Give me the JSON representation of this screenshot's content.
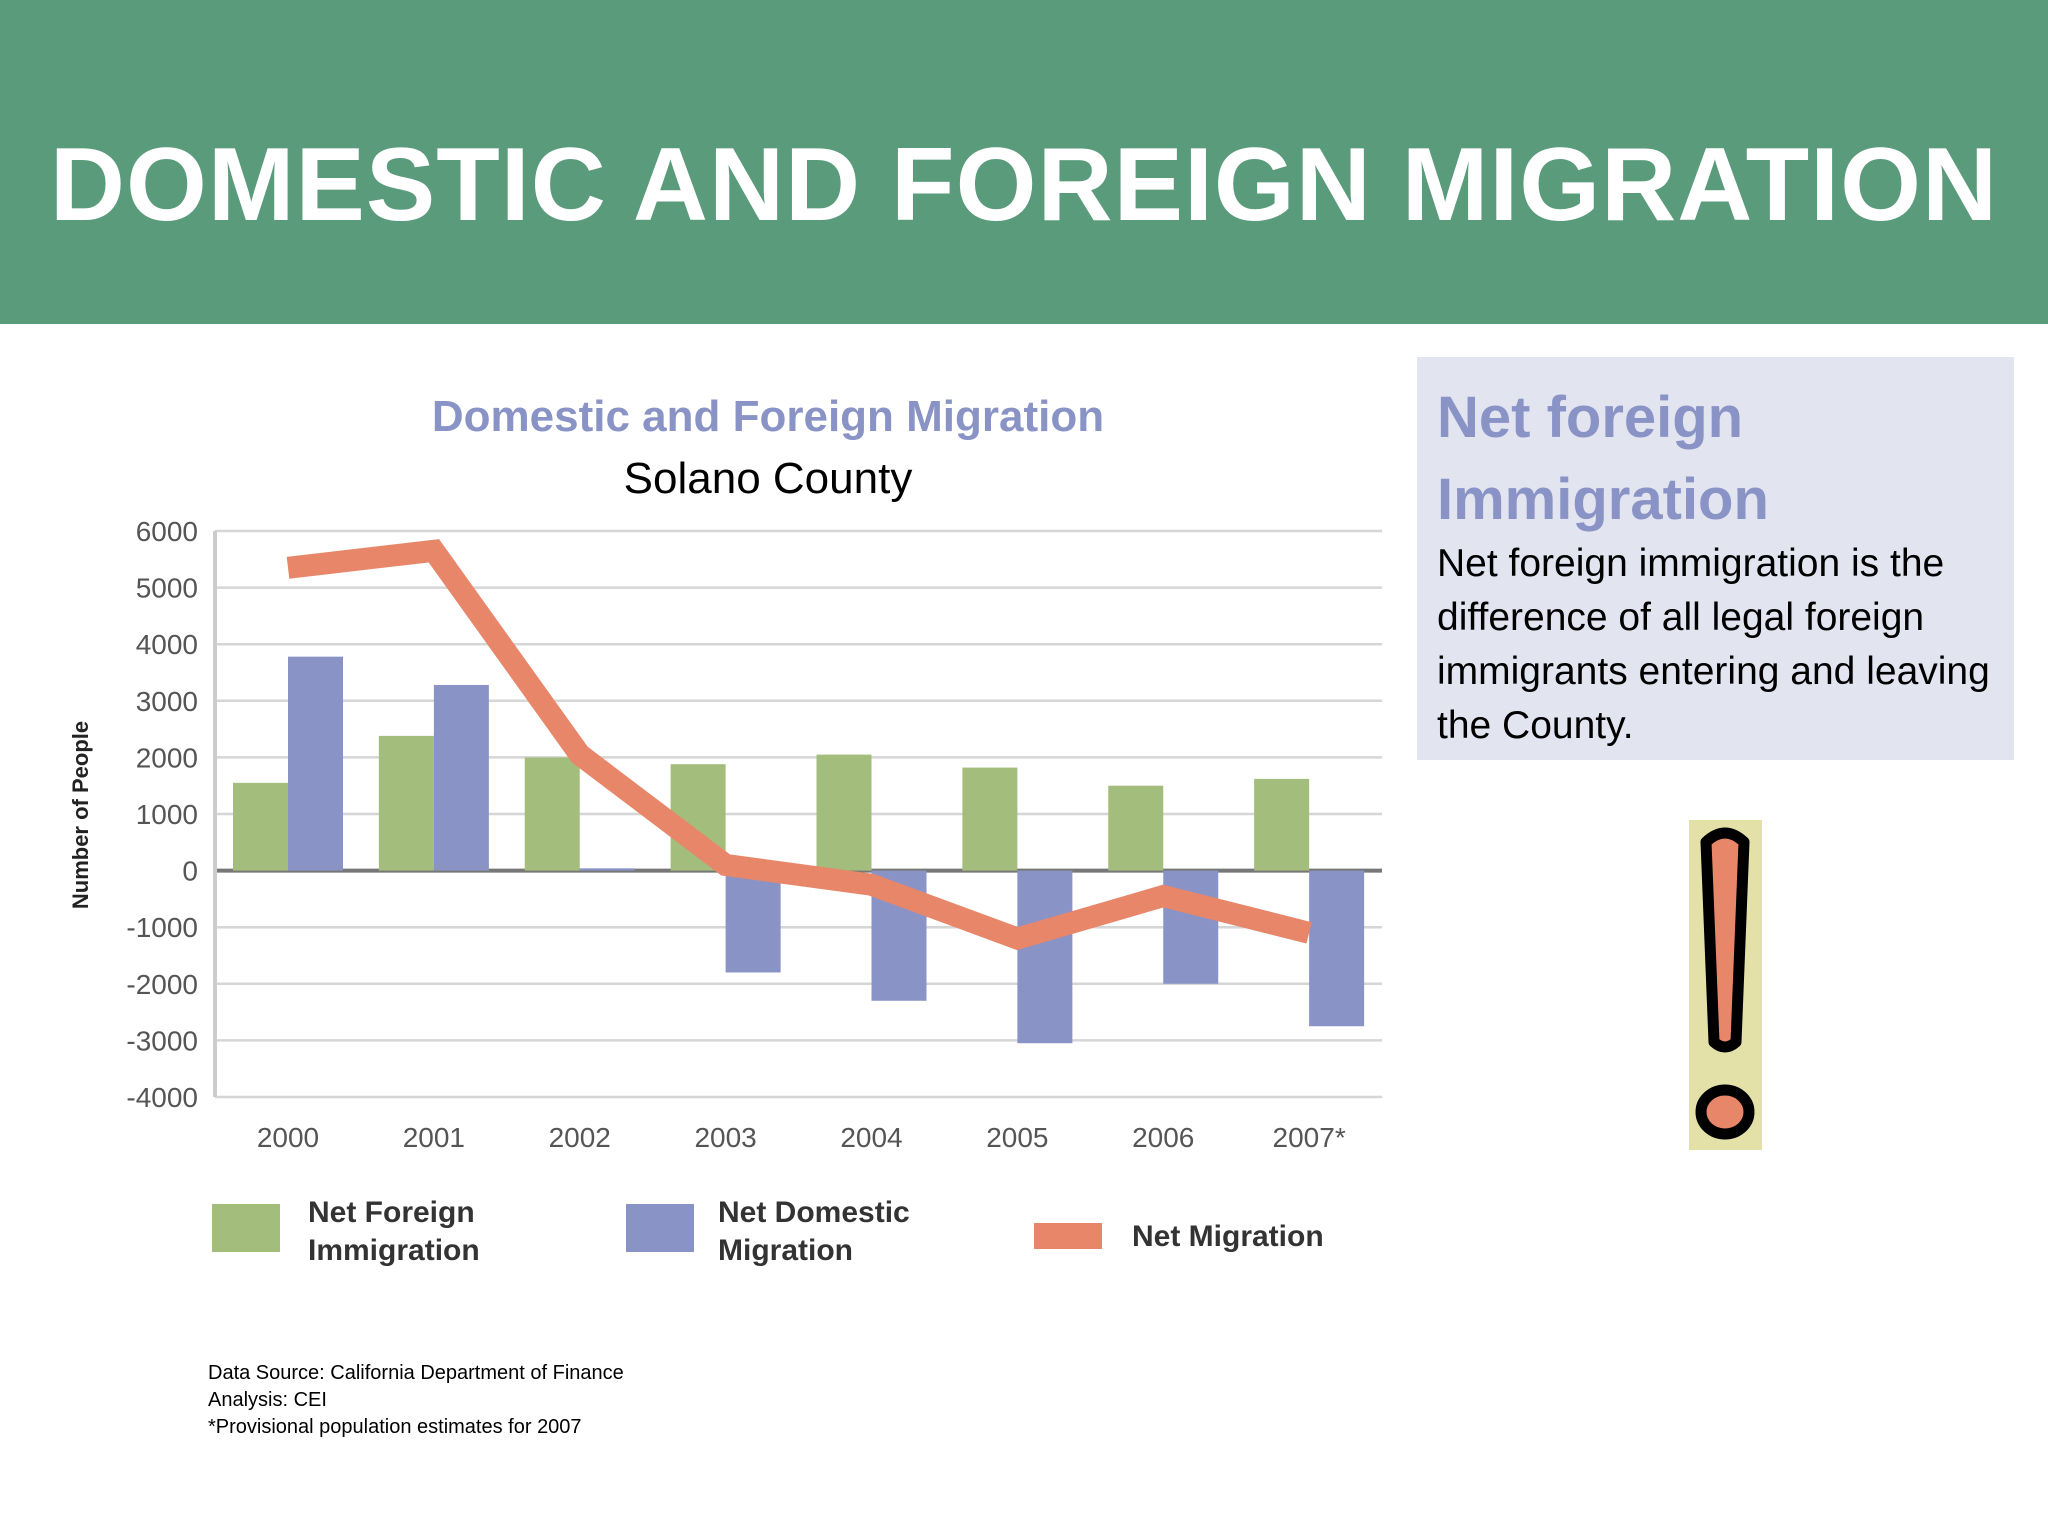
{
  "slide": {
    "title": "DOMESTIC AND FOREIGN MIGRATION"
  },
  "colors": {
    "header_bg": "#5a9b7c",
    "foreign": "#a3bd7c",
    "domestic": "#8a93c6",
    "net": "#e8866a",
    "accent_text": "#8a93c6",
    "info_bg": "#e2e4f0"
  },
  "chart_data": {
    "type": "bar",
    "title": "Domestic and Foreign Migration",
    "subtitle": "Solano County",
    "ylabel": "Number of People",
    "xlabel": "",
    "ylim": [
      -4000,
      6000
    ],
    "yticks": [
      6000,
      5000,
      4000,
      3000,
      2000,
      1000,
      0,
      -1000,
      -2000,
      -3000,
      -4000
    ],
    "ytick_labels": [
      "6000",
      "5000",
      "4000",
      "3000",
      "2000",
      "1000",
      "0",
      "-1000",
      "-2000",
      "-3000",
      "-4000"
    ],
    "grid": true,
    "legend_position": "bottom",
    "categories": [
      "2000",
      "2001",
      "2002",
      "2003",
      "2004",
      "2005",
      "2006",
      "2007*"
    ],
    "series": [
      {
        "name": "Net Foreign Immigration",
        "type": "bar",
        "color": "#a3bd7c",
        "values": [
          1550,
          2380,
          2000,
          1880,
          2050,
          1820,
          1500,
          1620
        ]
      },
      {
        "name": "Net Domestic Migration",
        "type": "bar",
        "color": "#8a93c6",
        "values": [
          3780,
          3280,
          40,
          -1800,
          -2300,
          -3050,
          -2000,
          -2750
        ]
      },
      {
        "name": "Net Migration",
        "type": "line",
        "color": "#e8866a",
        "values": [
          5350,
          5650,
          2050,
          100,
          -250,
          -1200,
          -450,
          -1100
        ]
      }
    ],
    "legend_labels": [
      [
        "Net Foreign",
        "Immigration"
      ],
      [
        "Net Domestic",
        "Migration"
      ],
      [
        "Net Migration"
      ]
    ]
  },
  "source": {
    "lines": [
      "Data Source: California Department of Finance",
      "Analysis: CEI",
      "*Provisional population estimates for 2007"
    ]
  },
  "info": {
    "title": "Net foreign Immigration",
    "text": "Net foreign immigration is the difference of all legal foreign immigrants entering and leaving the County."
  },
  "decor": {
    "icon": "exclamation-icon"
  }
}
